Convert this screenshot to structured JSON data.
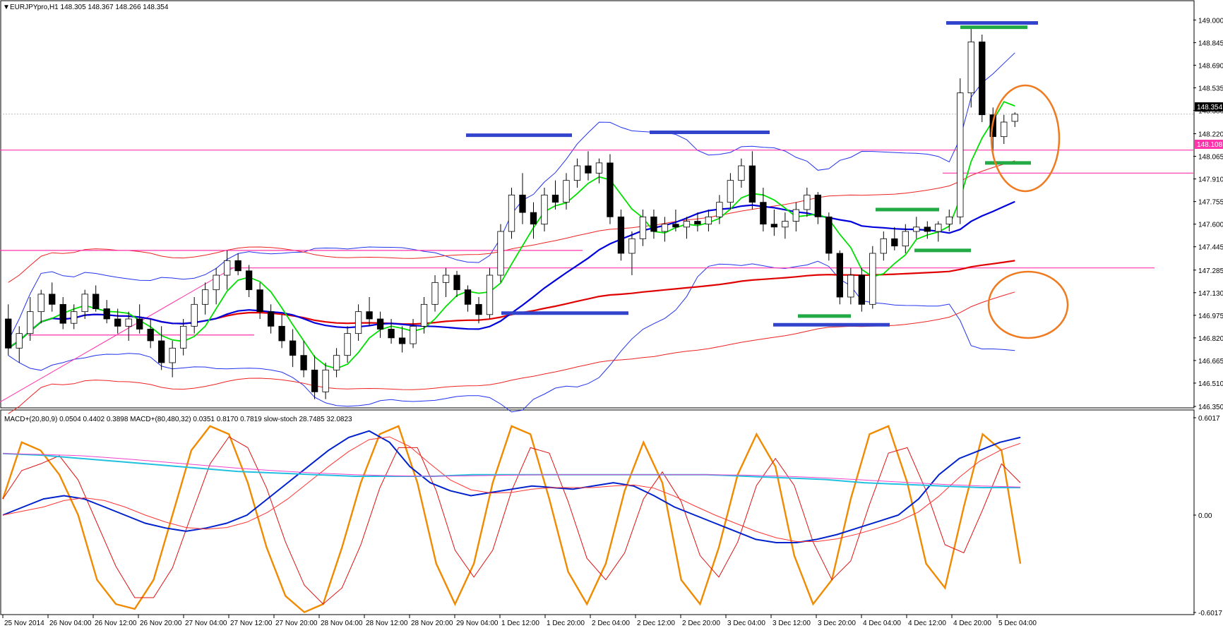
{
  "window": {
    "symbol_line": "EURJPYpro,H1  148.305 148.367 148.266 148.354",
    "indicator_line": "MACD+(20,80,9) 0.0504 0.4402 0.3898  MACD+(80,480,32) 0.0351 0.8170 0.7819  slow-stoch 28.7485 32.0823"
  },
  "colors": {
    "background": "#ffffff",
    "bull_candle": "#ffffff",
    "bear_candle": "#000000",
    "ma_fast": "#00e000",
    "ma_mid": "#0000dd",
    "ma_slow": "#e00000",
    "bands_blue": "#2233ee",
    "bands_red": "#ee2222",
    "horizontal_lines": "#ff33aa",
    "support_resistance_blue": "#3344cc",
    "support_resistance_green": "#22aa44",
    "annotation_circle": "#f07a20",
    "stoch_main": "#f08a00",
    "stoch_signal": "#e01010",
    "macd_main": "#0022cc",
    "macd_signal": "#ff3333",
    "macd_slow_main": "#22c0e0",
    "macd_slow_signal": "#ee44cc",
    "current_price_box": "#000000",
    "pink_price_box": "#ff33aa"
  },
  "chart_data": [
    {
      "type": "candlestick",
      "title": "EURJPYpro,H1",
      "ohlc_header": {
        "open": 148.305,
        "high": 148.367,
        "low": 148.266,
        "close": 148.354
      },
      "ylim": [
        146.35,
        149.05
      ],
      "y_ticks": [
        "149.000",
        "148.845",
        "148.690",
        "148.535",
        "148.380",
        "148.220",
        "148.065",
        "147.910",
        "147.755",
        "147.600",
        "147.445",
        "147.285",
        "147.130",
        "146.975",
        "146.820",
        "146.665",
        "146.510",
        "146.350"
      ],
      "current_price_label": "148.354",
      "pink_price_label": "148.108",
      "x_ticks": [
        "25 Nov 2014",
        "26 Nov 04:00",
        "26 Nov 12:00",
        "26 Nov 20:00",
        "27 Nov 04:00",
        "27 Nov 12:00",
        "27 Nov 20:00",
        "28 Nov 04:00",
        "28 Nov 12:00",
        "28 Nov 20:00",
        "29 Nov 04:00",
        "1 Dec 12:00",
        "1 Dec 20:00",
        "2 Dec 04:00",
        "2 Dec 12:00",
        "2 Dec 20:00",
        "3 Dec 04:00",
        "3 Dec 12:00",
        "3 Dec 20:00",
        "4 Dec 04:00",
        "4 Dec 12:00",
        "4 Dec 20:00",
        "5 Dec 04:00"
      ],
      "candles": [
        [
          146.95,
          147.05,
          146.7,
          146.75
        ],
        [
          146.75,
          146.9,
          146.65,
          146.85
        ],
        [
          146.85,
          147.1,
          146.8,
          147.0
        ],
        [
          147.0,
          147.15,
          146.92,
          147.12
        ],
        [
          147.12,
          147.2,
          147.0,
          147.05
        ],
        [
          147.05,
          147.1,
          146.88,
          146.92
        ],
        [
          146.92,
          147.05,
          146.88,
          147.0
        ],
        [
          147.0,
          147.15,
          146.95,
          147.12
        ],
        [
          147.12,
          147.18,
          147.0,
          147.02
        ],
        [
          147.02,
          147.08,
          146.92,
          146.95
        ],
        [
          146.95,
          147.02,
          146.85,
          146.9
        ],
        [
          146.9,
          147.0,
          146.8,
          146.95
        ],
        [
          146.95,
          147.05,
          146.85,
          146.88
        ],
        [
          146.88,
          146.95,
          146.75,
          146.8
        ],
        [
          146.8,
          146.9,
          146.6,
          146.65
        ],
        [
          146.65,
          146.8,
          146.55,
          146.75
        ],
        [
          146.75,
          146.95,
          146.7,
          146.9
        ],
        [
          146.9,
          147.1,
          146.85,
          147.05
        ],
        [
          147.05,
          147.2,
          146.98,
          147.15
        ],
        [
          147.15,
          147.3,
          147.05,
          147.25
        ],
        [
          147.25,
          147.42,
          147.15,
          147.35
        ],
        [
          147.35,
          147.4,
          147.25,
          147.28
        ],
        [
          147.28,
          147.32,
          147.1,
          147.15
        ],
        [
          147.15,
          147.2,
          146.95,
          147.0
        ],
        [
          147.0,
          147.05,
          146.85,
          146.9
        ],
        [
          146.9,
          146.98,
          146.75,
          146.8
        ],
        [
          146.8,
          146.88,
          146.62,
          146.7
        ],
        [
          146.7,
          146.8,
          146.55,
          146.6
        ],
        [
          146.6,
          146.7,
          146.4,
          146.45
        ],
        [
          146.45,
          146.65,
          146.4,
          146.6
        ],
        [
          146.6,
          146.75,
          146.55,
          146.7
        ],
        [
          146.7,
          146.9,
          146.65,
          146.85
        ],
        [
          146.85,
          147.05,
          146.8,
          147.0
        ],
        [
          147.0,
          147.1,
          146.9,
          146.95
        ],
        [
          146.95,
          147.0,
          146.82,
          146.88
        ],
        [
          146.88,
          146.95,
          146.78,
          146.82
        ],
        [
          146.82,
          146.9,
          146.72,
          146.78
        ],
        [
          146.78,
          146.95,
          146.75,
          146.9
        ],
        [
          146.9,
          147.1,
          146.85,
          147.05
        ],
        [
          147.05,
          147.25,
          147.0,
          147.2
        ],
        [
          147.2,
          147.3,
          147.1,
          147.25
        ],
        [
          147.25,
          147.28,
          147.1,
          147.15
        ],
        [
          147.15,
          147.18,
          147.0,
          147.05
        ],
        [
          147.05,
          147.1,
          146.92,
          146.98
        ],
        [
          146.98,
          147.3,
          146.95,
          147.25
        ],
        [
          147.25,
          147.6,
          147.2,
          147.55
        ],
        [
          147.55,
          147.85,
          147.5,
          147.8
        ],
        [
          147.8,
          147.95,
          147.6,
          147.68
        ],
        [
          147.68,
          147.75,
          147.5,
          147.6
        ],
        [
          147.6,
          147.85,
          147.55,
          147.8
        ],
        [
          147.8,
          147.9,
          147.7,
          147.75
        ],
        [
          147.75,
          147.95,
          147.7,
          147.9
        ],
        [
          147.9,
          148.05,
          147.85,
          148.0
        ],
        [
          148.0,
          148.1,
          147.9,
          147.95
        ],
        [
          147.95,
          148.05,
          147.88,
          148.02
        ],
        [
          148.02,
          148.08,
          147.6,
          147.65
        ],
        [
          147.65,
          147.7,
          147.35,
          147.4
        ],
        [
          147.4,
          147.55,
          147.25,
          147.5
        ],
        [
          147.5,
          147.7,
          147.45,
          147.65
        ],
        [
          147.65,
          147.7,
          147.5,
          147.55
        ],
        [
          147.55,
          147.65,
          147.48,
          147.6
        ],
        [
          147.6,
          147.7,
          147.55,
          147.58
        ],
        [
          147.58,
          147.65,
          147.5,
          147.62
        ],
        [
          147.62,
          147.68,
          147.55,
          147.6
        ],
        [
          147.6,
          147.7,
          147.55,
          147.65
        ],
        [
          147.65,
          147.8,
          147.6,
          147.75
        ],
        [
          147.75,
          147.95,
          147.7,
          147.9
        ],
        [
          147.9,
          148.05,
          147.85,
          148.0
        ],
        [
          148.0,
          148.1,
          147.7,
          147.75
        ],
        [
          147.75,
          147.85,
          147.55,
          147.6
        ],
        [
          147.6,
          147.7,
          147.52,
          147.58
        ],
        [
          147.58,
          147.68,
          147.5,
          147.62
        ],
        [
          147.62,
          147.75,
          147.55,
          147.7
        ],
        [
          147.7,
          147.85,
          147.65,
          147.8
        ],
        [
          147.8,
          147.82,
          147.6,
          147.65
        ],
        [
          147.65,
          147.68,
          147.35,
          147.4
        ],
        [
          147.4,
          147.42,
          147.05,
          147.1
        ],
        [
          147.1,
          147.3,
          147.05,
          147.25
        ],
        [
          147.25,
          147.3,
          147.0,
          147.05
        ],
        [
          147.05,
          147.45,
          147.02,
          147.4
        ],
        [
          147.4,
          147.55,
          147.35,
          147.5
        ],
        [
          147.5,
          147.58,
          147.42,
          147.45
        ],
        [
          147.45,
          147.6,
          147.4,
          147.55
        ],
        [
          147.55,
          147.65,
          147.5,
          147.58
        ],
        [
          147.58,
          147.62,
          147.5,
          147.55
        ],
        [
          147.55,
          147.62,
          147.48,
          147.6
        ],
        [
          147.6,
          147.7,
          147.55,
          147.65
        ],
        [
          147.65,
          148.6,
          147.6,
          148.5
        ],
        [
          148.5,
          148.95,
          148.4,
          148.85
        ],
        [
          148.85,
          148.9,
          148.3,
          148.35
        ],
        [
          148.35,
          148.4,
          148.1,
          148.2
        ],
        [
          148.2,
          148.35,
          148.15,
          148.3
        ],
        [
          148.305,
          148.367,
          148.266,
          148.354
        ]
      ],
      "horizontal_lines": [
        148.108,
        147.95,
        147.42,
        147.3,
        146.84
      ],
      "support_resistance_marks": [
        {
          "color": "blue",
          "price": 148.98
        },
        {
          "color": "green",
          "price": 148.95
        },
        {
          "color": "blue",
          "price": 148.21
        },
        {
          "color": "blue",
          "price": 148.23
        },
        {
          "color": "blue",
          "price": 146.99
        },
        {
          "color": "green",
          "price": 147.7
        },
        {
          "color": "green",
          "price": 147.42
        },
        {
          "color": "green",
          "price": 148.02
        },
        {
          "color": "green",
          "price": 146.97
        },
        {
          "color": "blue",
          "price": 146.91
        }
      ]
    },
    {
      "type": "line",
      "title": "MACD+(20,80,9) / MACD+(80,480,32) / slow-stoch",
      "ylim": [
        -0.6017,
        0.6017
      ],
      "y_ticks": [
        "0.6017",
        "0.00",
        "-0.6017"
      ],
      "series": [
        {
          "name": "slow-stoch",
          "color": "#f08a00",
          "values": [
            0.1,
            0.45,
            0.4,
            0.25,
            0.0,
            -0.4,
            -0.55,
            -0.58,
            -0.4,
            0.0,
            0.4,
            0.55,
            0.5,
            0.2,
            -0.2,
            -0.5,
            -0.6,
            -0.55,
            -0.2,
            0.2,
            0.5,
            0.55,
            0.2,
            -0.3,
            -0.55,
            -0.3,
            0.2,
            0.55,
            0.5,
            0.1,
            -0.35,
            -0.55,
            -0.3,
            0.15,
            0.45,
            0.2,
            -0.4,
            -0.55,
            -0.2,
            0.25,
            0.5,
            0.3,
            -0.25,
            -0.55,
            -0.4,
            0.1,
            0.5,
            0.55,
            0.2,
            -0.3,
            -0.45,
            0.05,
            0.5,
            0.4,
            -0.3
          ]
        },
        {
          "name": "MACD+(20,80,9)",
          "color": "#0022cc",
          "values": [
            0.0,
            0.05,
            0.1,
            0.12,
            0.1,
            0.05,
            0.0,
            -0.05,
            -0.08,
            -0.1,
            -0.08,
            -0.05,
            0.0,
            0.1,
            0.2,
            0.3,
            0.4,
            0.48,
            0.52,
            0.45,
            0.3,
            0.2,
            0.15,
            0.12,
            0.14,
            0.16,
            0.18,
            0.17,
            0.16,
            0.18,
            0.2,
            0.18,
            0.12,
            0.05,
            0.0,
            -0.05,
            -0.1,
            -0.15,
            -0.17,
            -0.17,
            -0.15,
            -0.12,
            -0.08,
            -0.04,
            0.0,
            0.1,
            0.25,
            0.35,
            0.4,
            0.45,
            0.48
          ]
        },
        {
          "name": "MACD+(80,480,32)",
          "color": "#22c0e0",
          "values": [
            0.38,
            0.37,
            0.35,
            0.33,
            0.31,
            0.29,
            0.27,
            0.26,
            0.25,
            0.24,
            0.24,
            0.24,
            0.25,
            0.25,
            0.25,
            0.25,
            0.25,
            0.25,
            0.25,
            0.24,
            0.23,
            0.22,
            0.2,
            0.19,
            0.18,
            0.17,
            0.17
          ]
        }
      ]
    }
  ]
}
